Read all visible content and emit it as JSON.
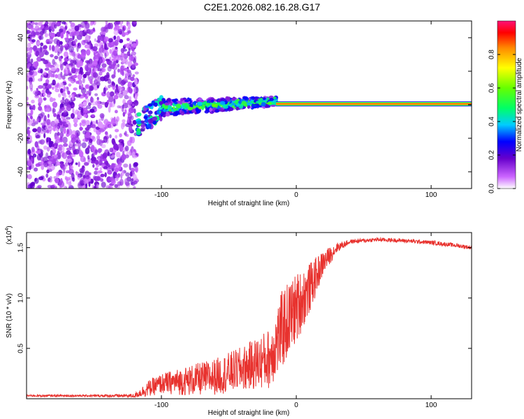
{
  "title": "C2E1.2026.082.16.28.G17",
  "chart_data": [
    {
      "type": "heatmap",
      "xlabel": "Height of straight line (km)",
      "ylabel": "Frequency (Hz)",
      "xlim": [
        -200,
        130
      ],
      "ylim": [
        -50,
        50
      ],
      "xticks": [
        -100,
        0,
        100
      ],
      "yticks": [
        -40,
        -20,
        0,
        20,
        40
      ],
      "colorbar": {
        "label": "Normalized spectral amplitude",
        "range": [
          0,
          1
        ],
        "ticks": [
          "0.0",
          "0.2",
          "0.4",
          "0.6",
          "0.8"
        ],
        "tick_values": [
          0.0,
          0.2,
          0.4,
          0.6,
          0.8
        ]
      },
      "features": [
        {
          "region": "noise",
          "x_range": [
            -200,
            -118
          ],
          "y_range": [
            -50,
            50
          ],
          "amplitude": 0.15
        },
        {
          "region": "signal-onset",
          "x_range": [
            -118,
            -100
          ],
          "freq_start": -12,
          "freq_end": -2,
          "amplitude": 0.4
        },
        {
          "region": "fluctuating-signal",
          "x_range": [
            -100,
            -15
          ],
          "freq_start": -2,
          "freq_end": 2,
          "amplitude": 0.4
        },
        {
          "region": "stable-carrier",
          "x_range": [
            -15,
            130
          ],
          "freq": 0.5,
          "amplitude": 0.95
        }
      ]
    },
    {
      "type": "line",
      "xlabel": "Height of straight line (km)",
      "ylabel": "SNR (10 * v/v)",
      "yscale_label": "(x10",
      "yscale_exp": "4",
      "xlim": [
        -200,
        130
      ],
      "ylim": [
        0,
        1.65
      ],
      "xticks": [
        -100,
        0,
        100
      ],
      "yticks": [
        0.5,
        1.0,
        1.5
      ],
      "ytick_labels": [
        "0.5",
        "1.0",
        "1.5"
      ],
      "series": [
        {
          "name": "SNR",
          "color": "#e8322e",
          "x": [
            -200,
            -150,
            -120,
            -110,
            -100,
            -80,
            -60,
            -40,
            -20,
            -10,
            0,
            10,
            20,
            30,
            40,
            60,
            80,
            100,
            120,
            130
          ],
          "y": [
            0.03,
            0.03,
            0.03,
            0.1,
            0.15,
            0.18,
            0.22,
            0.3,
            0.4,
            0.7,
            0.9,
            1.1,
            1.35,
            1.5,
            1.56,
            1.58,
            1.57,
            1.55,
            1.52,
            1.5
          ],
          "spread": [
            0.01,
            0.01,
            0.02,
            0.08,
            0.1,
            0.15,
            0.18,
            0.22,
            0.3,
            0.4,
            0.35,
            0.25,
            0.12,
            0.05,
            0.02,
            0.02,
            0.02,
            0.02,
            0.02,
            0.02
          ]
        }
      ]
    }
  ]
}
